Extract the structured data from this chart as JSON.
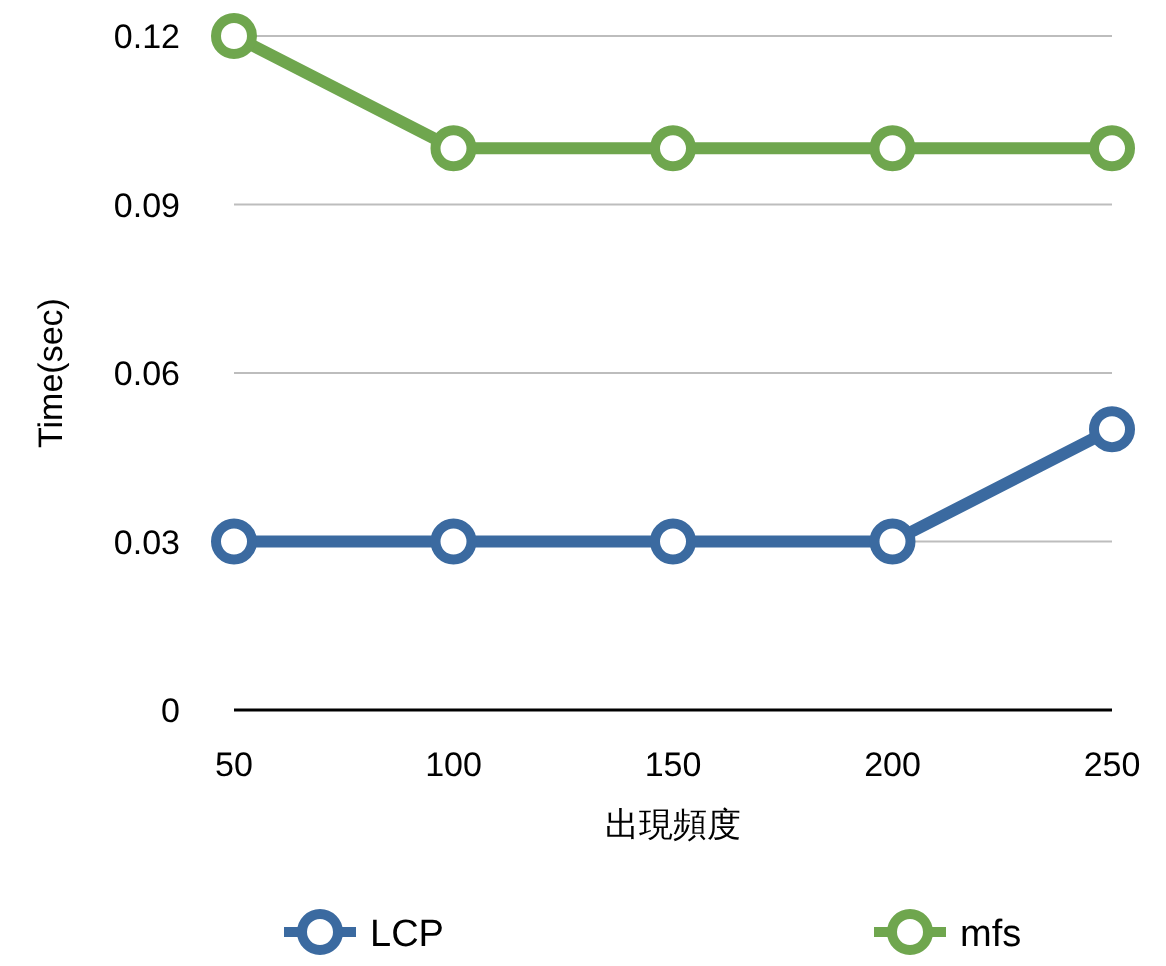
{
  "chart_data": {
    "type": "line",
    "xlabel": "出現頻度",
    "ylabel": "Time(sec)",
    "categories": [
      "50",
      "100",
      "150",
      "200",
      "250"
    ],
    "series": [
      {
        "name": "LCP",
        "color": "#3b6aa0",
        "values": [
          0.03,
          0.03,
          0.03,
          0.03,
          0.05
        ]
      },
      {
        "name": "mfs",
        "color": "#6fa64e",
        "values": [
          0.12,
          0.1,
          0.1,
          0.1,
          0.1
        ]
      }
    ],
    "ylim": [
      0,
      0.12
    ],
    "yticks": [
      0,
      0.03,
      0.06,
      0.09,
      0.12
    ],
    "grid": "y",
    "legend": "bottom",
    "marker": "circle"
  }
}
